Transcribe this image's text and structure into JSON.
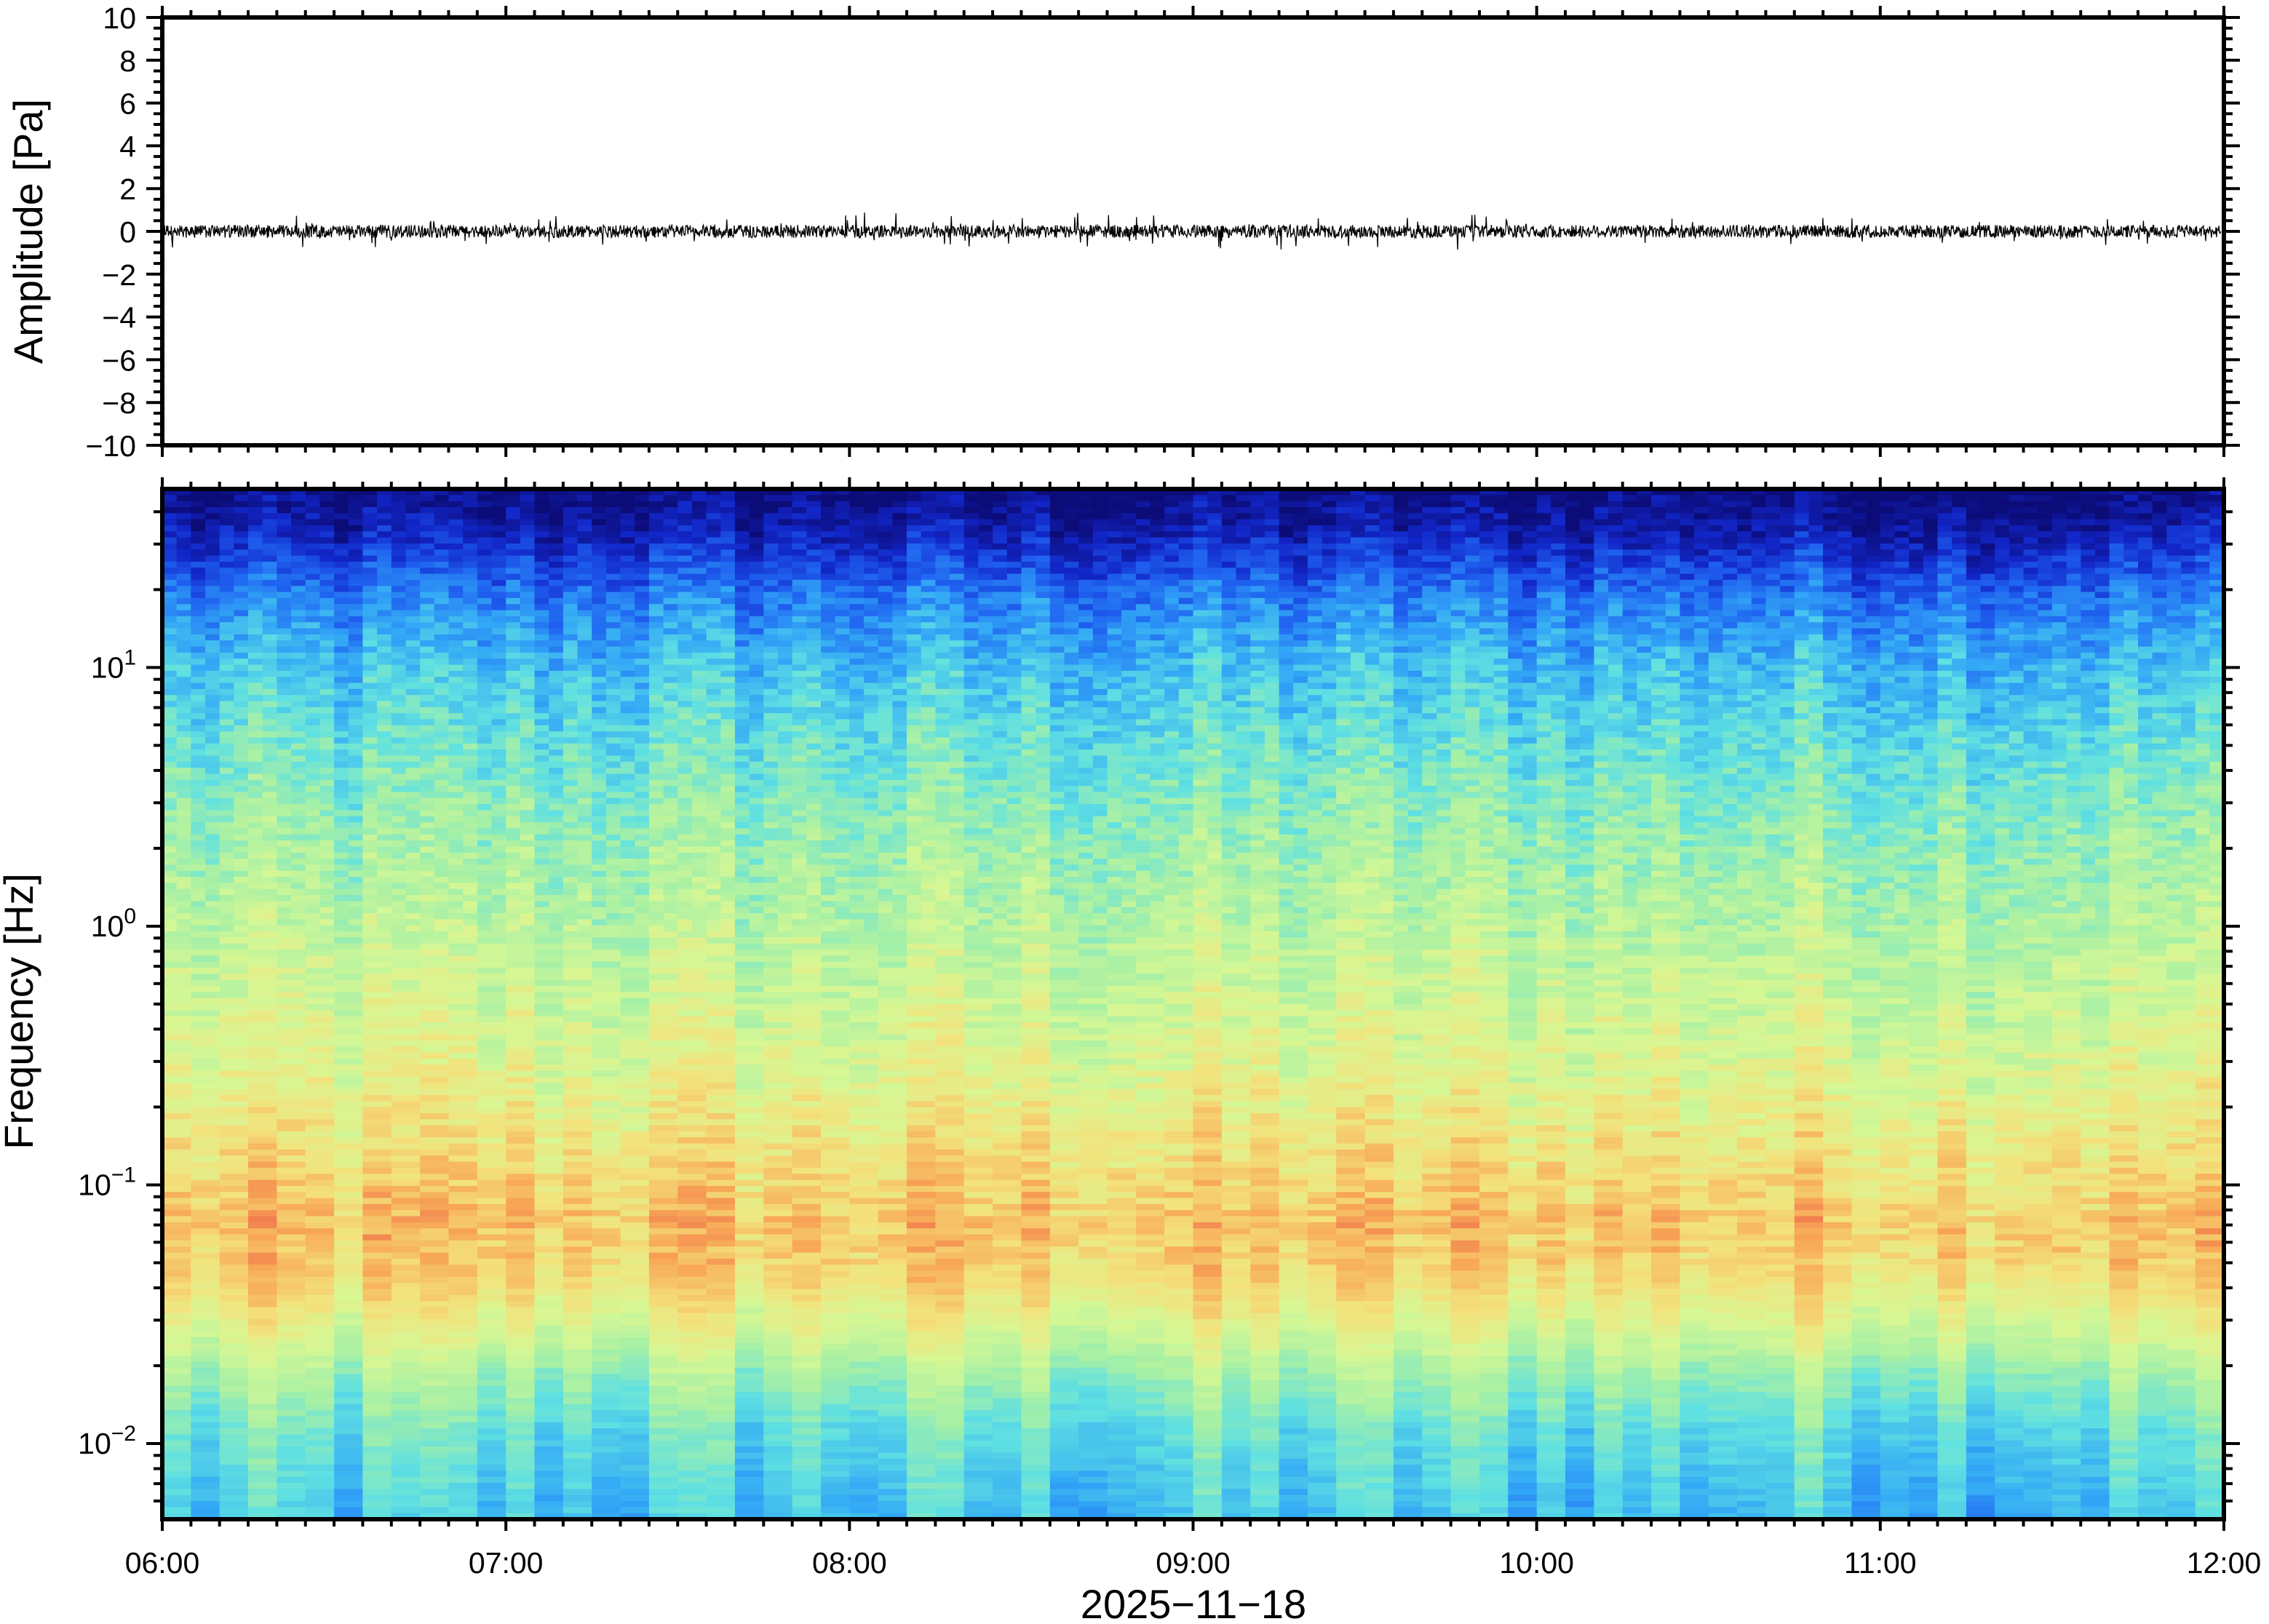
{
  "chart_data": [
    {
      "type": "line",
      "ylabel": "Amplitude [Pa]",
      "ylim": [
        -10,
        10
      ],
      "yticks": [
        10,
        8,
        6,
        4,
        2,
        0,
        -2,
        -4,
        -6,
        -8,
        -10
      ],
      "ytick_labels": [
        "10",
        "8",
        "6",
        "4",
        "2",
        "0",
        "−2",
        "−4",
        "−6",
        "−8",
        "−10"
      ],
      "y_minor_step": 0.5,
      "xlim": [
        "06:00",
        "12:00"
      ],
      "x_minor_step_minutes": 5,
      "series": [
        {
          "description_values": "noise trace centred on 0 Pa, typical excursion about ±0.5 Pa, peaks to about ±1.3 Pa",
          "color": "#000000"
        }
      ],
      "grid": false
    },
    {
      "type": "heatmap",
      "ylabel": "Frequency [Hz]",
      "xlabel": "2025−11−18",
      "y_scale": "log",
      "ylim": [
        0.0051,
        49
      ],
      "yticks": [
        10,
        1,
        0.1,
        0.01
      ],
      "ytick_labels": [
        {
          "base": "10",
          "exp": "1"
        },
        {
          "base": "10",
          "exp": "0"
        },
        {
          "base": "10",
          "exp": "−1"
        },
        {
          "base": "10",
          "exp": "−2"
        }
      ],
      "xlim": [
        "06:00",
        "12:00"
      ],
      "xticks": [
        "06:00",
        "07:00",
        "08:00",
        "09:00",
        "10:00",
        "11:00",
        "12:00"
      ],
      "x_minor_step_minutes": 5,
      "colormap": [
        "#0c0c78",
        "#1226c8",
        "#1f62f0",
        "#33a8f6",
        "#5fe0e2",
        "#a6f0a6",
        "#d6f794",
        "#f3e27c",
        "#f8aa58",
        "#ea5a46"
      ],
      "level_profile": {
        "freq_hz": [
          49,
          35,
          25,
          18,
          10,
          5,
          2,
          1,
          0.5,
          0.25,
          0.12,
          0.07,
          0.045,
          0.03,
          0.018,
          0.011,
          0.0051
        ],
        "normalized_power": [
          0.0,
          0.07,
          0.17,
          0.27,
          0.38,
          0.46,
          0.55,
          0.6,
          0.65,
          0.7,
          0.78,
          0.84,
          0.8,
          0.7,
          0.55,
          0.45,
          0.38
        ]
      },
      "grid": false
    }
  ]
}
